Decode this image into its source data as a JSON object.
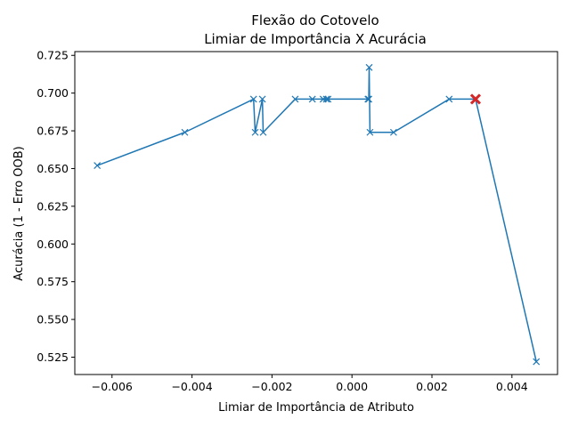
{
  "chart_data": {
    "type": "line",
    "title_line1": "Flexão do Cotovelo",
    "title_line2": "Limiar de Importância X Acurácia",
    "xlabel": "Limiar de Importância de Atributo",
    "ylabel": "Acurácia (1 - Erro OOB)",
    "xlim": [
      -0.00693,
      0.00514
    ],
    "ylim": [
      0.5135,
      0.7275
    ],
    "x_ticks": [
      "−0.006",
      "−0.004",
      "−0.002",
      "0.000",
      "0.002",
      "0.004"
    ],
    "x_tick_values": [
      -0.006,
      -0.004,
      -0.002,
      0.0,
      0.002,
      0.004
    ],
    "y_ticks": [
      "0.525",
      "0.550",
      "0.575",
      "0.600",
      "0.625",
      "0.650",
      "0.675",
      "0.700",
      "0.725"
    ],
    "y_tick_values": [
      0.525,
      0.55,
      0.575,
      0.6,
      0.625,
      0.65,
      0.675,
      0.7,
      0.725
    ],
    "grid": false,
    "series": [
      {
        "color": "#1f77b4",
        "marker": "x",
        "x": [
          -0.00637,
          -0.00418,
          -0.00246,
          -0.00242,
          -0.00224,
          -0.00222,
          -0.00142,
          -0.00099,
          -0.00072,
          -0.00064,
          -0.0006,
          0.0004,
          0.00042,
          0.00043,
          0.00045,
          0.00104,
          0.00243,
          0.00309,
          0.00461
        ],
        "y": [
          0.652,
          0.674,
          0.696,
          0.674,
          0.696,
          0.674,
          0.696,
          0.696,
          0.696,
          0.696,
          0.696,
          0.696,
          0.696,
          0.717,
          0.674,
          0.674,
          0.696,
          0.696,
          0.522
        ]
      }
    ],
    "highlight": {
      "color": "#d62728",
      "marker": "x",
      "x": 0.00309,
      "y": 0.696
    }
  }
}
